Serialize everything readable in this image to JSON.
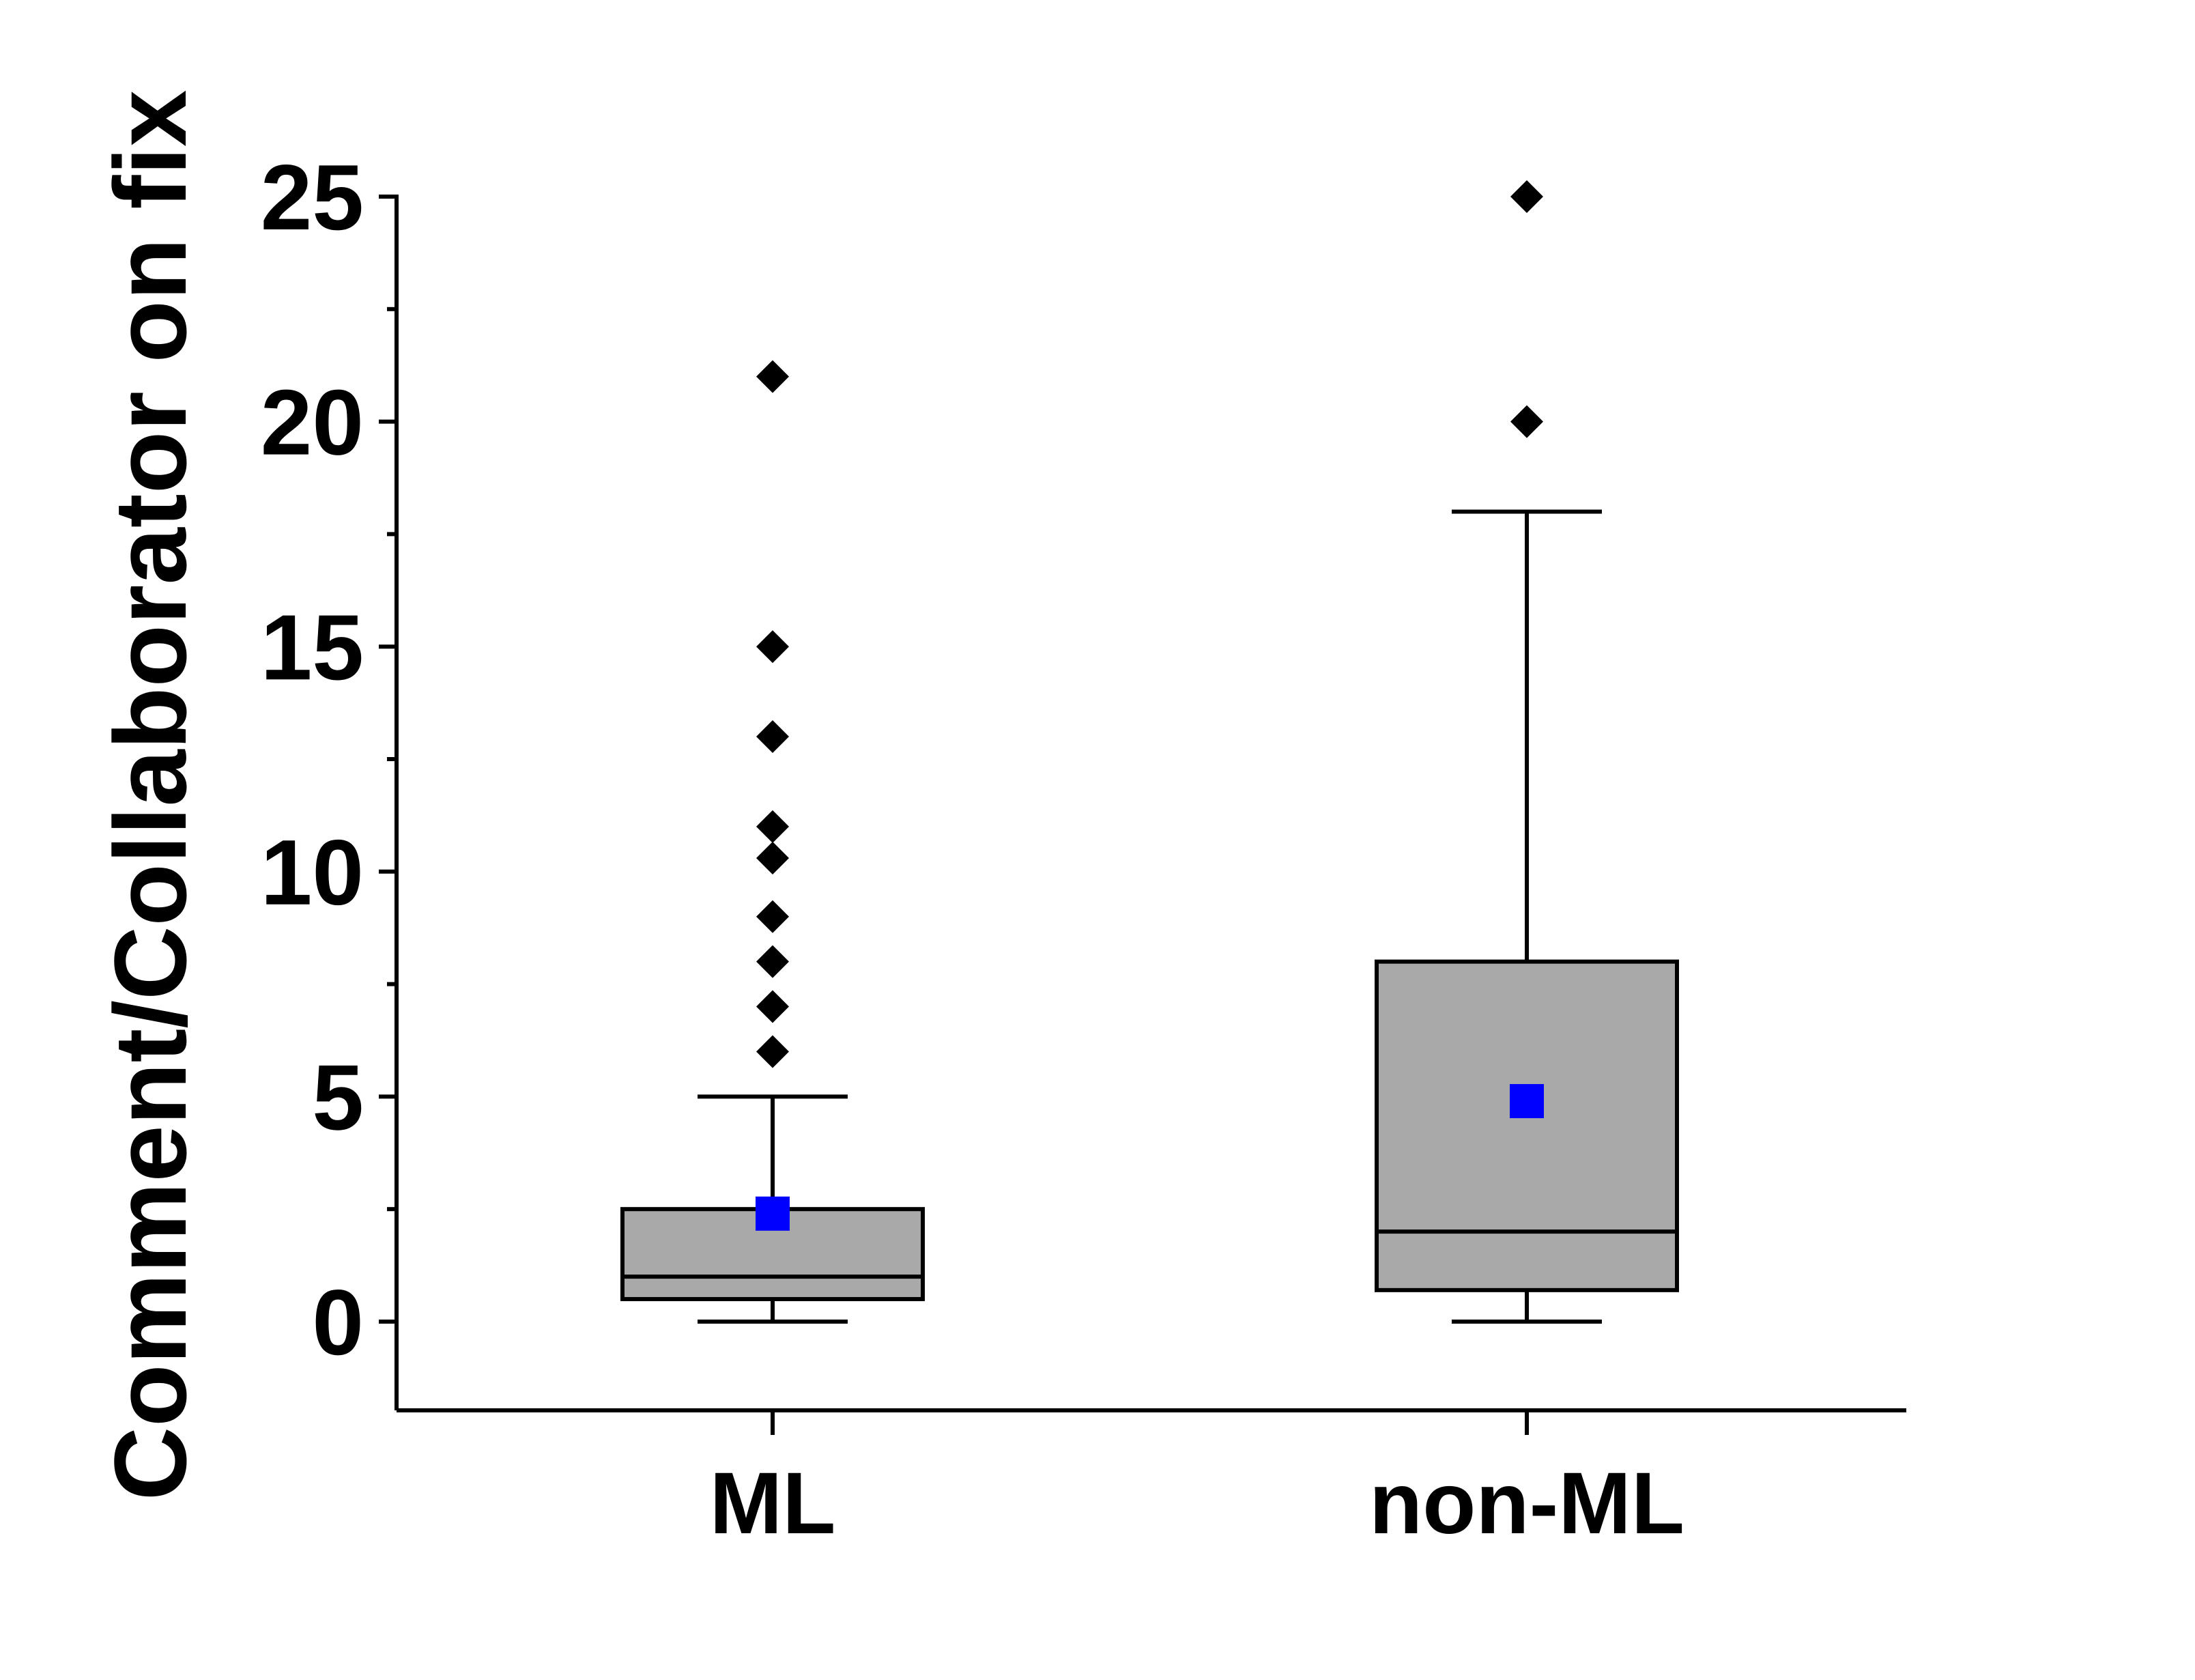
{
  "chart_data": {
    "type": "box",
    "title": "",
    "xlabel": "",
    "ylabel": "Comment/Collaborator on fix",
    "ylim": [
      -2,
      25
    ],
    "yticks": [
      0,
      5,
      10,
      15,
      20,
      25
    ],
    "grid": false,
    "categories": [
      "ML",
      "non-ML"
    ],
    "box_color": "#a9a9a9",
    "mean_color": "#0000ff",
    "outlier_color": "#000000",
    "boxes": [
      {
        "name": "ML",
        "whisker_low": 0,
        "q1": 0.5,
        "median": 1,
        "q3": 2.5,
        "whisker_high": 5,
        "mean": 2.4,
        "outliers": [
          6,
          7,
          8,
          9,
          10.3,
          11,
          13,
          15,
          21
        ]
      },
      {
        "name": "non-ML",
        "whisker_low": 0,
        "q1": 0.7,
        "median": 2,
        "q3": 8,
        "whisker_high": 18,
        "mean": 4.9,
        "outliers": [
          20,
          25
        ]
      }
    ]
  }
}
